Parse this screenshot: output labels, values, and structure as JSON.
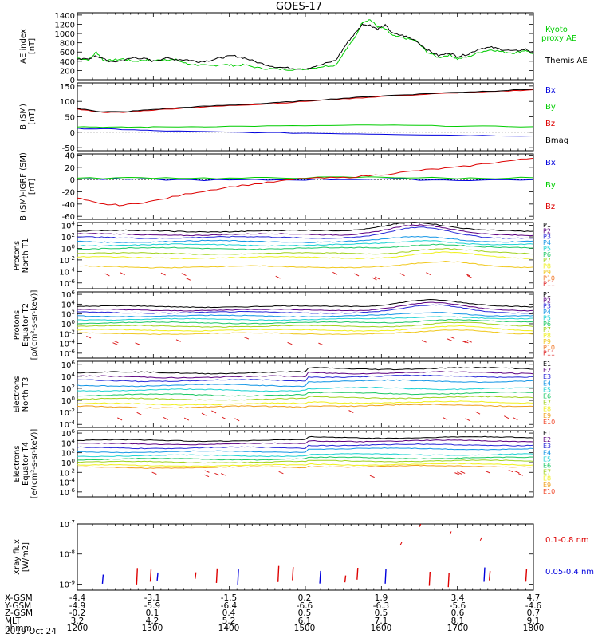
{
  "title": "GOES-17",
  "colors": {
    "black": "#000000",
    "red": "#dd0000",
    "green": "#00cc00",
    "blue": "#0000dd",
    "p_palette": [
      "#000000",
      "#5c0080",
      "#2828d8",
      "#1496e6",
      "#1ed2d2",
      "#1ec864",
      "#a0d21e",
      "#f0f01e",
      "#f0c81e",
      "#f07828",
      "#dc1e1e"
    ],
    "e_palette": [
      "#000000",
      "#5c0080",
      "#2828d8",
      "#1496e6",
      "#1ed2d2",
      "#1ec864",
      "#a0d21e",
      "#f0f01e",
      "#f0a01e",
      "#f04628"
    ]
  },
  "chart_data": [
    {
      "type": "line",
      "panel": "ae",
      "ylabel": [
        "AE index",
        "[nT]"
      ],
      "yticks": [
        "1400",
        "1200",
        "1000",
        "800",
        "600",
        "400",
        "200",
        "0"
      ],
      "ylim": [
        0,
        1450
      ],
      "xlim": [
        1200,
        1800
      ],
      "series": [
        {
          "name": "Kyoto proxy AE",
          "color": "green",
          "x": [
            1200,
            1215,
            1225,
            1235,
            1245,
            1260,
            1275,
            1290,
            1300,
            1315,
            1330,
            1345,
            1360,
            1375,
            1390,
            1405,
            1420,
            1440,
            1460,
            1480,
            1500,
            1520,
            1540,
            1555,
            1565,
            1575,
            1585,
            1595,
            1605,
            1615,
            1630,
            1645,
            1660,
            1675,
            1690,
            1700,
            1715,
            1730,
            1745,
            1760,
            1775,
            1790,
            1800
          ],
          "y": [
            470,
            430,
            600,
            410,
            420,
            450,
            400,
            430,
            410,
            440,
            430,
            340,
            320,
            300,
            330,
            310,
            320,
            250,
            230,
            220,
            230,
            280,
            320,
            700,
            900,
            1250,
            1300,
            1150,
            1100,
            950,
            900,
            850,
            600,
            480,
            540,
            450,
            500,
            600,
            650,
            600,
            580,
            640,
            550
          ]
        },
        {
          "name": "Themis AE",
          "color": "black",
          "x": [
            1200,
            1215,
            1225,
            1235,
            1245,
            1260,
            1275,
            1290,
            1300,
            1315,
            1330,
            1345,
            1360,
            1375,
            1390,
            1405,
            1420,
            1440,
            1460,
            1480,
            1500,
            1520,
            1540,
            1555,
            1565,
            1575,
            1585,
            1595,
            1605,
            1615,
            1630,
            1645,
            1660,
            1675,
            1690,
            1700,
            1715,
            1730,
            1745,
            1760,
            1775,
            1790,
            1800
          ],
          "y": [
            430,
            460,
            510,
            450,
            380,
            420,
            480,
            450,
            400,
            470,
            440,
            430,
            390,
            420,
            480,
            520,
            470,
            360,
            280,
            250,
            240,
            320,
            420,
            800,
            1000,
            1200,
            1180,
            1100,
            1180,
            1000,
            950,
            850,
            650,
            520,
            580,
            500,
            560,
            680,
            700,
            650,
            620,
            660,
            580
          ]
        }
      ],
      "legend": [
        "Kyoto",
        "proxy AE",
        "Themis AE"
      ]
    },
    {
      "type": "line",
      "panel": "bsm",
      "ylabel": [
        "B (SM)",
        "[nT]"
      ],
      "yticks": [
        "150",
        "100",
        "50",
        "0",
        "-50"
      ],
      "ylim": [
        -60,
        160
      ],
      "xlim": [
        1200,
        1800
      ],
      "series": [
        {
          "name": "Bx",
          "color": "blue",
          "x": [
            1200,
            1250,
            1300,
            1400,
            1500,
            1600,
            1700,
            1800
          ],
          "y": [
            12,
            10,
            5,
            0,
            -3,
            -6,
            -10,
            -12
          ]
        },
        {
          "name": "By",
          "color": "green",
          "x": [
            1200,
            1250,
            1300,
            1400,
            1500,
            1600,
            1700,
            1800
          ],
          "y": [
            18,
            16,
            17,
            19,
            21,
            23,
            20,
            18
          ]
        },
        {
          "name": "Bz",
          "color": "red",
          "x": [
            1200,
            1230,
            1260,
            1300,
            1350,
            1400,
            1450,
            1500,
            1550,
            1600,
            1650,
            1700,
            1750,
            1800
          ],
          "y": [
            75,
            65,
            64,
            72,
            80,
            86,
            92,
            100,
            108,
            116,
            122,
            128,
            132,
            138
          ]
        },
        {
          "name": "Bmag",
          "color": "black",
          "x": [
            1200,
            1230,
            1260,
            1300,
            1350,
            1400,
            1450,
            1500,
            1550,
            1600,
            1650,
            1700,
            1750,
            1800
          ],
          "y": [
            77,
            67,
            66,
            74,
            82,
            88,
            94,
            102,
            110,
            118,
            124,
            130,
            134,
            140
          ]
        }
      ],
      "legend": [
        "Bx",
        "By",
        "Bz",
        "Bmag"
      ]
    },
    {
      "type": "line",
      "panel": "bigrf",
      "ylabel": [
        "B (SM)-IGRF (SM)",
        "[nT]"
      ],
      "yticks": [
        "40",
        "20",
        "0",
        "-20",
        "-40",
        "-60"
      ],
      "ylim": [
        -65,
        42
      ],
      "xlim": [
        1200,
        1800
      ],
      "series": [
        {
          "name": "Bx",
          "color": "blue",
          "x": [
            1200,
            1300,
            1400,
            1500,
            1600,
            1700,
            1800
          ],
          "y": [
            1,
            0,
            -1,
            0,
            1,
            -1,
            0
          ]
        },
        {
          "name": "By",
          "color": "green",
          "x": [
            1200,
            1300,
            1400,
            1500,
            1600,
            1700,
            1800
          ],
          "y": [
            2,
            3,
            2,
            3,
            4,
            2,
            3
          ]
        },
        {
          "name": "Bz",
          "color": "red",
          "x": [
            1200,
            1230,
            1260,
            1300,
            1350,
            1400,
            1450,
            1500,
            1550,
            1600,
            1650,
            1700,
            1750,
            1800
          ],
          "y": [
            -30,
            -40,
            -42,
            -35,
            -22,
            -12,
            -5,
            2,
            3,
            8,
            15,
            20,
            28,
            35
          ]
        }
      ],
      "legend": [
        "Bx",
        "By",
        "Bz"
      ]
    },
    {
      "type": "line",
      "panel": "p1",
      "ylabel": [
        "Protons",
        "North T1"
      ],
      "yticks": [
        "10^4",
        "10^2",
        "10^0",
        "10^-2",
        "10^-4",
        "10^-6"
      ],
      "ylim_log10": [
        -7,
        4.5
      ],
      "xlim": [
        1200,
        1800
      ],
      "channels": [
        "P1",
        "P2",
        "P3",
        "P4",
        "P5",
        "P6",
        "P7",
        "P8",
        "P9",
        "P10",
        "P11"
      ],
      "levels_log10": [
        3.0,
        2.4,
        1.9,
        1.2,
        0.6,
        0.0,
        -0.9,
        -1.6,
        -3.2
      ],
      "bump_center": 1640,
      "bump_width": 55,
      "bump_height": 1.6
    },
    {
      "type": "line",
      "panel": "p2",
      "ylabel": [
        "Protons",
        "Equator T2",
        "[p/(cm²-s-sr-keV)]"
      ],
      "yticks": [
        "10^6",
        "10^4",
        "10^2",
        "10^0",
        "10^-2",
        "10^-4",
        "10^-6"
      ],
      "ylim_log10": [
        -7,
        6.5
      ],
      "xlim": [
        1200,
        1800
      ],
      "channels": [
        "P1",
        "P2",
        "P3",
        "P4",
        "P5",
        "P6",
        "P7",
        "P8",
        "P9",
        "P10",
        "P11"
      ],
      "levels_log10": [
        3.5,
        2.8,
        2.3,
        1.6,
        0.9,
        0.2,
        -0.5,
        -1.3,
        -2.0
      ],
      "bump_center": 1660,
      "bump_width": 55,
      "bump_height": 1.4
    },
    {
      "type": "line",
      "panel": "e3",
      "ylabel": [
        "Electrons",
        "North T3"
      ],
      "yticks": [
        "10^6",
        "10^4",
        "10^2",
        "10^0",
        "10^-2",
        "10^-4"
      ],
      "ylim_log10": [
        -4.5,
        6.5
      ],
      "xlim": [
        1200,
        1800
      ],
      "channels": [
        "E1",
        "E2",
        "E3",
        "E4",
        "E5",
        "E6",
        "E7",
        "E8",
        "E9",
        "E10"
      ],
      "levels_log10": [
        4.6,
        3.9,
        3.3,
        2.5,
        1.7,
        0.9,
        0.2,
        -0.6,
        -1.1
      ],
      "step_at": 1500,
      "step_height": 0.7
    },
    {
      "type": "line",
      "panel": "e4",
      "ylabel": [
        "Electrons",
        "Equator T4",
        "[e/(cm²-s-sr-keV)]"
      ],
      "yticks": [
        "10^6",
        "10^4",
        "10^2",
        "10^0",
        "10^-2",
        "10^-4",
        "10^-6"
      ],
      "ylim_log10": [
        -7,
        6.5
      ],
      "xlim": [
        1200,
        1800
      ],
      "channels": [
        "E1",
        "E2",
        "E3",
        "E4",
        "E5",
        "E6",
        "E7",
        "E8",
        "E9",
        "E10"
      ],
      "levels_log10": [
        4.5,
        3.8,
        3.0,
        2.2,
        1.4,
        0.7,
        0.1,
        -0.6,
        -1.0
      ],
      "step_at": 1500,
      "step_height": 0.6
    },
    {
      "type": "scatter",
      "panel": "xray",
      "ylabel": [
        "Xray flux",
        "[W/m2]"
      ],
      "yticks": [
        "10^-7",
        "10^-8",
        "10^-9"
      ],
      "ylim_log10": [
        -9.2,
        -7
      ],
      "xlim": [
        1200,
        1800
      ],
      "series": [
        {
          "name": "0.1-0.8 nm",
          "color": "red"
        },
        {
          "name": "0.05-0.4 nm",
          "color": "blue"
        }
      ],
      "legend": [
        "0.1-0.8 nm",
        "0.05-0.4 nm"
      ]
    }
  ],
  "x_axis": {
    "rows": [
      {
        "label": "X-GSM",
        "values": [
          "-4.4",
          "-3.1",
          "-1.5",
          "0.2",
          "1.9",
          "3.4",
          "4.7"
        ]
      },
      {
        "label": "Y-GSM",
        "values": [
          "-4.9",
          "-5.9",
          "-6.4",
          "-6.6",
          "-6.3",
          "-5.6",
          "-4.6"
        ]
      },
      {
        "label": "Z-GSM",
        "values": [
          "-0.2",
          "0.1",
          "0.4",
          "0.5",
          "0.5",
          "0.6",
          "0.7"
        ]
      },
      {
        "label": "MLT",
        "values": [
          "3.2",
          "4.2",
          "5.2",
          "6.1",
          "7.1",
          "8.1",
          "9.1"
        ]
      },
      {
        "label": "hhmm",
        "values": [
          "1200",
          "1300",
          "1400",
          "1500",
          "1600",
          "1700",
          "1800"
        ]
      }
    ],
    "date": "2019 Oct 24"
  }
}
